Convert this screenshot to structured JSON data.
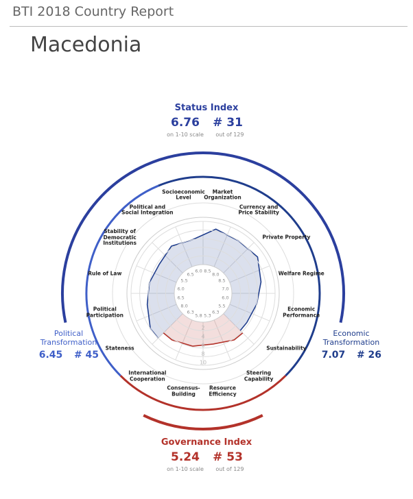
{
  "header": {
    "title": "BTI 2018 Country Report",
    "country": "Macedonia"
  },
  "indices": [
    {
      "title": "Status Index",
      "score": 6.76,
      "rank": "# 31",
      "scale_note": "on 1-10 scale",
      "rank_note": "out of 129",
      "color": "#2b3f9e"
    },
    {
      "title": "Political Transformation",
      "score": 6.45,
      "rank": "# 45",
      "color": "#3f5fc8"
    },
    {
      "title": "Economic Transformation",
      "score": 7.07,
      "rank": "# 26",
      "color": "#1f3d8c"
    },
    {
      "title": "Governance Index",
      "score": 5.24,
      "rank": "# 53",
      "scale_note": "on 1-10 scale",
      "rank_note": "out of 129",
      "color": "#b3322a"
    }
  ],
  "chart_data": {
    "type": "radar",
    "categories": [
      "Stateness",
      "Political Participation",
      "Rule of Law",
      "Stability of Democratic Institutions",
      "Political and Social Integration",
      "Socioeconomic Level",
      "Market Organization",
      "Currency and Price Stability",
      "Private Property",
      "Welfare Regime",
      "Economic Performance",
      "Sustainability",
      "Steering Capability",
      "Resource Efficiency",
      "Consensus-Building",
      "International Cooperation"
    ],
    "series": [
      {
        "color": "#1f3d8c",
        "values": [
          8.0,
          6.5,
          6.0,
          5.5,
          6.5,
          6.0,
          8.5,
          8.0,
          8.5,
          7.0,
          6.0,
          5.5,
          null,
          null,
          null,
          null
        ],
        "value_labels": [
          "8.0",
          "6.5",
          "6.0",
          "5.5",
          "6.5",
          "6.0",
          "8.5",
          "8.0",
          "8.5",
          "7.0",
          "6.0",
          "5.5",
          null,
          null,
          null,
          null
        ]
      },
      {
        "color": "#b3322a",
        "values": [
          null,
          null,
          null,
          null,
          null,
          null,
          null,
          null,
          null,
          null,
          null,
          null,
          6.3,
          5.3,
          5.8,
          6.3
        ],
        "value_labels": [
          null,
          null,
          null,
          null,
          null,
          null,
          null,
          null,
          null,
          null,
          null,
          null,
          "6.3",
          "5.3",
          "5.8",
          "6.3"
        ]
      }
    ],
    "rlim": [
      0,
      10
    ],
    "rticks": [
      2,
      4,
      6,
      8,
      10
    ]
  }
}
